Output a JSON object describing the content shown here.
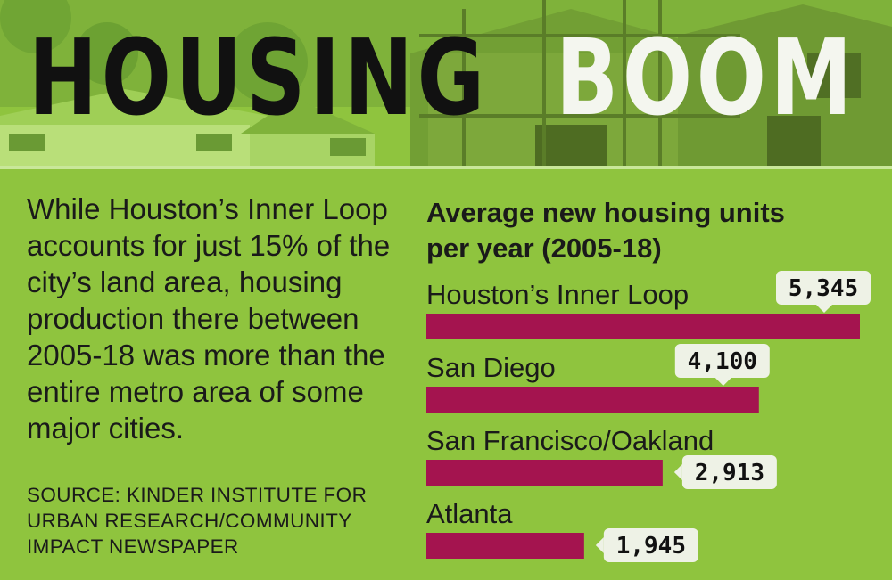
{
  "headline": {
    "word1": "HOUSING",
    "word2": "BOOM"
  },
  "intro": "While Houston’s Inner Loop accounts for just 15% of the city’s land area, housing production there between 2005-18 was more than the entire metro area of some major cities.",
  "source": "SOURCE: KINDER INSTITUTE FOR URBAN RESEARCH/COMMUNITY IMPACT NEWSPAPER",
  "colors": {
    "background": "#8fc43e",
    "bar": "#a4144f",
    "label_box": "#eef2e6"
  },
  "chart_data": {
    "type": "bar",
    "orientation": "horizontal",
    "title": "Average new housing units per year (2005-18)",
    "categories": [
      "Houston’s Inner Loop",
      "San Diego",
      "San Francisco/Oakland",
      "Atlanta"
    ],
    "values": [
      5345,
      4100,
      2913,
      1945
    ],
    "value_labels": [
      "5,345",
      "4,100",
      "2,913",
      "1,945"
    ],
    "xlim": [
      0,
      5345
    ],
    "grid": false
  }
}
